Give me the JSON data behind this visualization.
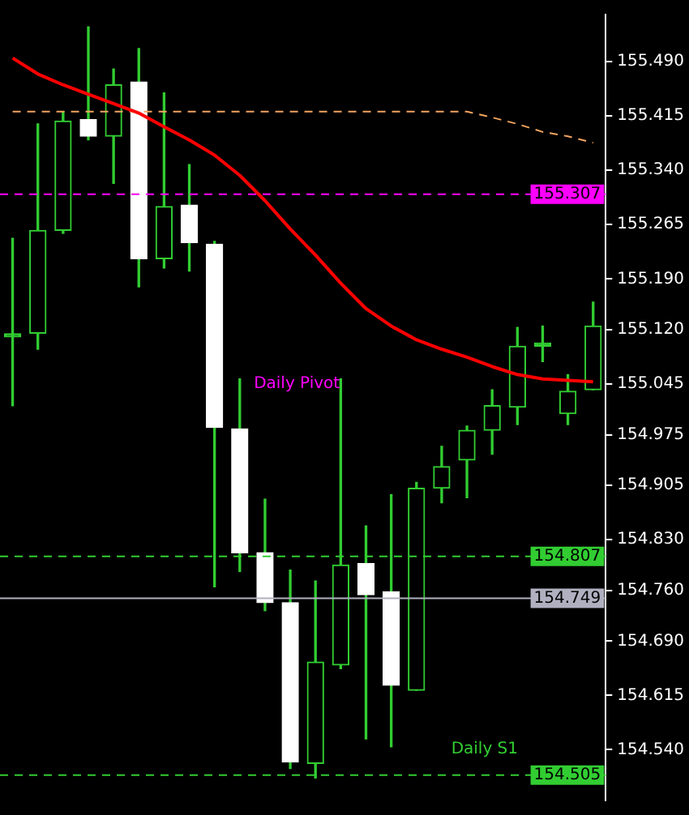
{
  "chart_data": {
    "type": "candlestick",
    "categories": [
      null,
      null,
      null,
      null,
      null,
      null,
      null,
      null,
      null,
      null,
      null,
      null,
      null,
      null,
      null,
      null,
      null,
      null,
      null,
      null,
      null,
      null,
      null,
      null
    ],
    "ohlc": [
      [
        155.11,
        155.246,
        155.015,
        155.11
      ],
      [
        155.115,
        155.404,
        155.093,
        155.257
      ],
      [
        155.257,
        155.421,
        155.253,
        155.408
      ],
      [
        155.41,
        155.538,
        155.382,
        155.387
      ],
      [
        155.387,
        155.48,
        155.322,
        155.458
      ],
      [
        155.462,
        155.508,
        155.179,
        155.218
      ],
      [
        155.218,
        155.447,
        155.205,
        155.29
      ],
      [
        155.292,
        155.348,
        155.201,
        155.24
      ],
      [
        155.238,
        155.242,
        154.765,
        154.985
      ],
      [
        154.983,
        155.052,
        154.786,
        154.812
      ],
      [
        154.812,
        154.886,
        154.732,
        154.743
      ],
      [
        154.743,
        154.788,
        154.514,
        154.523
      ],
      [
        154.521,
        154.773,
        154.501,
        154.661
      ],
      [
        154.657,
        155.052,
        154.652,
        154.795
      ],
      [
        154.797,
        154.849,
        154.555,
        154.754
      ],
      [
        154.758,
        154.892,
        154.544,
        154.629
      ],
      [
        154.622,
        154.909,
        154.622,
        154.901
      ],
      [
        154.901,
        154.959,
        154.881,
        154.931
      ],
      [
        154.94,
        154.987,
        154.888,
        154.981
      ],
      [
        154.981,
        155.037,
        154.948,
        155.015
      ],
      [
        155.013,
        155.123,
        154.989,
        155.097
      ],
      [
        155.097,
        155.125,
        155.076,
        155.097
      ],
      [
        155.004,
        155.058,
        154.989,
        155.035
      ],
      [
        155.037,
        155.158,
        155.037,
        155.125
      ]
    ],
    "color": "#32cd32",
    "colors": [
      "#32cd32",
      "#32cd32",
      "#32cd32",
      "#ffffff",
      "#32cd32",
      "#ffffff",
      "#32cd32",
      "#ffffff",
      "#ffffff",
      "#ffffff",
      "#ffffff",
      "#ffffff",
      "#32cd32",
      "#32cd32",
      "#ffffff",
      "#ffffff",
      "#32cd32",
      "#32cd32",
      "#32cd32",
      "#32cd32",
      "#32cd32",
      "#32cd32",
      "#32cd32",
      "#32cd32"
    ],
    "series": [
      {
        "type": "line",
        "color": "#ff0000",
        "values": [
          155.495,
          155.473,
          155.458,
          155.445,
          155.432,
          155.419,
          155.4,
          155.382,
          155.361,
          155.333,
          155.298,
          155.259,
          155.223,
          155.184,
          155.149,
          155.125,
          155.106,
          155.093,
          155.082,
          155.069,
          155.058,
          155.052,
          155.05,
          155.048
        ]
      },
      {
        "type": "line",
        "color": "#f4a460",
        "line_style": "dashed",
        "values": [
          155.421,
          155.421,
          155.421,
          155.421,
          155.421,
          155.421,
          155.421,
          155.421,
          155.421,
          155.421,
          155.421,
          155.421,
          155.421,
          155.421,
          155.421,
          155.421,
          155.421,
          155.421,
          155.421,
          155.413,
          155.404,
          155.393,
          155.387,
          155.378
        ]
      }
    ],
    "ylim": [
      154.47,
      155.555
    ],
    "yticks": [
      {
        "value": 154.54,
        "label": "154.540"
      },
      {
        "value": 154.615,
        "label": "154.615"
      },
      {
        "value": 154.69,
        "label": "154.690"
      },
      {
        "value": 154.76,
        "label": "154.760"
      },
      {
        "value": 154.83,
        "label": "154.830"
      },
      {
        "value": 154.905,
        "label": "154.905"
      },
      {
        "value": 154.975,
        "label": "154.975"
      },
      {
        "value": 155.045,
        "label": "155.045"
      },
      {
        "value": 155.12,
        "label": "155.120"
      },
      {
        "value": 155.19,
        "label": "155.190"
      },
      {
        "value": 155.265,
        "label": "155.265"
      },
      {
        "value": 155.34,
        "label": "155.340"
      },
      {
        "value": 155.415,
        "label": "155.415"
      },
      {
        "value": 155.49,
        "label": "155.490"
      }
    ],
    "ref_lines": [
      {
        "axis": "y",
        "value": 155.307,
        "label": "155.307",
        "color": "#ff00ff",
        "line_style": "dashed"
      },
      {
        "axis": "y",
        "value": 154.807,
        "label": "154.807",
        "color": "#32cd32",
        "line_style": "dashed"
      },
      {
        "axis": "y",
        "value": 154.749,
        "label": "154.749",
        "color": "#b0b0c0",
        "line_style": "solid"
      },
      {
        "axis": "y",
        "value": 154.505,
        "label": "154.505",
        "color": "#32cd32",
        "line_style": "dashed"
      }
    ],
    "annotations": [
      "Daily Pivot",
      "Daily S1"
    ],
    "tick_labels": "y",
    "grid": false
  }
}
